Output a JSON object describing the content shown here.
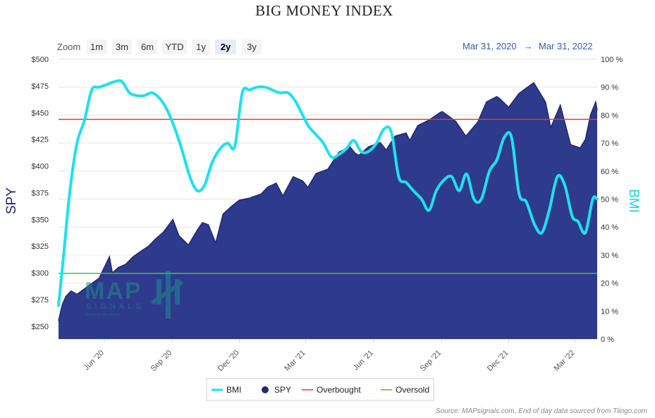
{
  "title": "BIG MONEY INDEX",
  "zoom": {
    "label": "Zoom",
    "buttons": [
      "1m",
      "3m",
      "6m",
      "YTD",
      "1y",
      "2y",
      "3y"
    ],
    "active": "2y"
  },
  "date_range": {
    "start": "Mar 31, 2020",
    "arrow": "→",
    "end": "Mar 31, 2022"
  },
  "watermark": {
    "brand": "MAP",
    "sub": "SIGNALS",
    "tagline": "Follow the Big Money"
  },
  "credit": "Source: MAPsignals.com, End of day data sourced from Tiingo.com",
  "colors": {
    "spy_fill": "#2e3a8c",
    "spy_line": "#1f2a6b",
    "bmi": "#1fe0ee",
    "overbought": "#e53935",
    "oversold": "#2ecc40"
  },
  "chart_data": {
    "type": "area",
    "title": "BIG MONEY INDEX",
    "y_left": {
      "label": "SPY",
      "range": [
        238,
        500
      ],
      "ticks": [
        "$250",
        "$275",
        "$300",
        "$325",
        "$350",
        "$375",
        "$400",
        "$425",
        "$450",
        "$475",
        "$500"
      ]
    },
    "y_right": {
      "label": "BMI",
      "range": [
        0,
        100
      ],
      "ticks": [
        "0 %",
        "10 %",
        "20 %",
        "30 %",
        "40 %",
        "50 %",
        "60 %",
        "70 %",
        "80 %",
        "90 %",
        "100 %"
      ]
    },
    "x_axis": {
      "range": [
        "2020-03-31",
        "2022-03-31"
      ],
      "ticks": [
        "Jun '20",
        "Sep '20",
        "Dec '20",
        "Mar '21",
        "Jun '21",
        "Sep '21",
        "Dec '21",
        "Mar '22"
      ]
    },
    "legend": {
      "placement": "bottom-center",
      "items": [
        "BMI",
        "SPY",
        "Overbought",
        "Oversold"
      ]
    },
    "thresholds": {
      "overbought": 78.5,
      "oversold": 23.5
    },
    "series": [
      {
        "name": "SPY",
        "type": "area",
        "axis": "left",
        "x": [
          "2020-03-31",
          "2020-04-05",
          "2020-04-10",
          "2020-04-17",
          "2020-04-25",
          "2020-05-05",
          "2020-05-15",
          "2020-05-25",
          "2020-06-08",
          "2020-06-12",
          "2020-06-20",
          "2020-06-30",
          "2020-07-10",
          "2020-07-20",
          "2020-07-31",
          "2020-08-10",
          "2020-08-20",
          "2020-09-02",
          "2020-09-10",
          "2020-09-23",
          "2020-10-05",
          "2020-10-12",
          "2020-10-20",
          "2020-10-30",
          "2020-11-09",
          "2020-11-20",
          "2020-12-01",
          "2020-12-15",
          "2020-12-31",
          "2021-01-08",
          "2021-01-20",
          "2021-01-29",
          "2021-02-12",
          "2021-02-25",
          "2021-03-04",
          "2021-03-15",
          "2021-03-31",
          "2021-04-15",
          "2021-04-30",
          "2021-05-07",
          "2021-05-12",
          "2021-05-25",
          "2021-06-10",
          "2021-06-18",
          "2021-06-30",
          "2021-07-15",
          "2021-07-20",
          "2021-07-31",
          "2021-08-15",
          "2021-08-30",
          "2021-09-02",
          "2021-09-20",
          "2021-10-04",
          "2021-10-20",
          "2021-11-01",
          "2021-11-15",
          "2021-11-19",
          "2021-12-01",
          "2021-12-15",
          "2021-12-31",
          "2022-01-04",
          "2022-01-20",
          "2022-01-27",
          "2022-02-09",
          "2022-02-23",
          "2022-03-08",
          "2022-03-15",
          "2022-03-22",
          "2022-03-29",
          "2022-03-31"
        ],
        "y": [
          255,
          270,
          278,
          283,
          280,
          285,
          290,
          295,
          315,
          300,
          305,
          308,
          315,
          320,
          325,
          332,
          338,
          350,
          335,
          326,
          340,
          347,
          345,
          328,
          355,
          362,
          368,
          370,
          374,
          380,
          384,
          372,
          390,
          386,
          380,
          393,
          397,
          413,
          418,
          412,
          410,
          418,
          422,
          415,
          428,
          431,
          424,
          438,
          443,
          450,
          451,
          442,
          428,
          441,
          460,
          465,
          463,
          455,
          468,
          476,
          478,
          460,
          436,
          457,
          420,
          417,
          425,
          448,
          460,
          452
        ]
      },
      {
        "name": "BMI",
        "type": "line",
        "axis": "right",
        "x": [
          "2020-03-31",
          "2020-04-07",
          "2020-04-15",
          "2020-04-25",
          "2020-05-05",
          "2020-05-15",
          "2020-05-25",
          "2020-06-05",
          "2020-06-15",
          "2020-06-25",
          "2020-07-05",
          "2020-07-15",
          "2020-07-25",
          "2020-08-05",
          "2020-08-15",
          "2020-08-25",
          "2020-09-05",
          "2020-09-15",
          "2020-09-25",
          "2020-10-05",
          "2020-10-15",
          "2020-10-25",
          "2020-11-05",
          "2020-11-15",
          "2020-11-25",
          "2020-12-05",
          "2020-12-15",
          "2020-12-25",
          "2021-01-05",
          "2021-01-15",
          "2021-01-25",
          "2021-02-05",
          "2021-02-15",
          "2021-02-25",
          "2021-03-05",
          "2021-03-15",
          "2021-03-25",
          "2021-04-05",
          "2021-04-15",
          "2021-04-25",
          "2021-05-05",
          "2021-05-15",
          "2021-05-25",
          "2021-06-05",
          "2021-06-15",
          "2021-06-25",
          "2021-07-05",
          "2021-07-15",
          "2021-07-25",
          "2021-08-05",
          "2021-08-15",
          "2021-08-25",
          "2021-09-05",
          "2021-09-15",
          "2021-09-25",
          "2021-10-05",
          "2021-10-15",
          "2021-10-25",
          "2021-11-05",
          "2021-11-15",
          "2021-11-25",
          "2021-12-05",
          "2021-12-15",
          "2021-12-25",
          "2022-01-05",
          "2022-01-15",
          "2022-01-25",
          "2022-02-05",
          "2022-02-15",
          "2022-02-25",
          "2022-03-05",
          "2022-03-15",
          "2022-03-25",
          "2022-03-31"
        ],
        "y": [
          12,
          30,
          52,
          70,
          78,
          89,
          90,
          91,
          92,
          92,
          88,
          87,
          87,
          88,
          86,
          82,
          75,
          67,
          58,
          53,
          55,
          63,
          68,
          70,
          69,
          88,
          89,
          90,
          90,
          89,
          88,
          88,
          85,
          80,
          76,
          73,
          70,
          65,
          66,
          68,
          71,
          67,
          67,
          70,
          75,
          74,
          58,
          56,
          53,
          50,
          46,
          53,
          57,
          58,
          53,
          59,
          50,
          50,
          60,
          64,
          72,
          72,
          52,
          49,
          41,
          38,
          46,
          58,
          55,
          44,
          42,
          38,
          50,
          50
        ]
      }
    ]
  }
}
